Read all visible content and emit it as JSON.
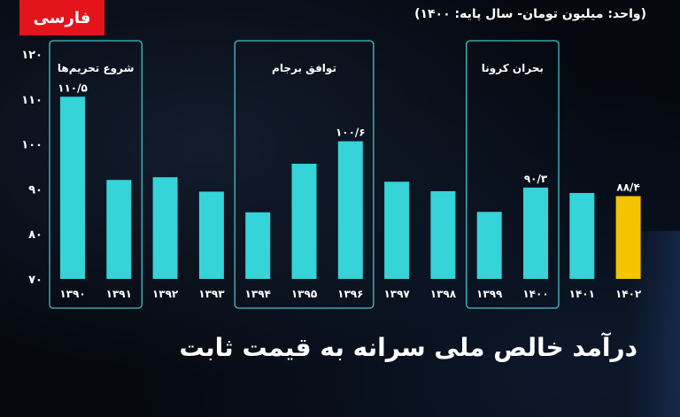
{
  "logo": {
    "text": "فارسی"
  },
  "unit_note": "(واحد: میلیون تومان- سال پایه: ۱۴۰۰)",
  "headline": "درآمد خالص ملی سرانه به قیمت ثابت",
  "colors": {
    "background": "#05080f",
    "bar": "#34d4d9",
    "bar_highlight": "#f5c400",
    "box_stroke": "#3fc2c9",
    "text": "#ffffff",
    "logo_bg": "#e3141b"
  },
  "chart_data": {
    "type": "bar",
    "title": "درآمد خالص ملی سرانه به قیمت ثابت",
    "categories": [
      "۱۳۹۰",
      "۱۳۹۱",
      "۱۳۹۲",
      "۱۳۹۳",
      "۱۳۹۴",
      "۱۳۹۵",
      "۱۳۹۶",
      "۱۳۹۷",
      "۱۳۹۸",
      "۱۳۹۹",
      "۱۴۰۰",
      "۱۴۰۱",
      "۱۴۰۲"
    ],
    "values": [
      110.5,
      92.0,
      92.6,
      89.4,
      84.8,
      95.6,
      100.6,
      91.6,
      89.5,
      84.9,
      90.3,
      89.1,
      88.4
    ],
    "highlight_index": 12,
    "ylim": [
      70,
      120
    ],
    "yticks": [
      "۷۰",
      "۸۰",
      "۹۰",
      "۱۰۰",
      "۱۱۰",
      "۱۲۰"
    ],
    "ytick_values": [
      70,
      80,
      90,
      100,
      110,
      120
    ],
    "data_labels": [
      {
        "index": 0,
        "text": "۱۱۰/۵"
      },
      {
        "index": 6,
        "text": "۱۰۰/۶"
      },
      {
        "index": 10,
        "text": "۹۰/۳"
      },
      {
        "index": 12,
        "text": "۸۸/۴"
      }
    ],
    "annotations": [
      {
        "label": "شروع تحریم‌ها",
        "from": 0,
        "to": 1
      },
      {
        "label": "توافق برجام",
        "from": 4,
        "to": 6
      },
      {
        "label": "بحران کرونا",
        "from": 9,
        "to": 10
      }
    ],
    "xlabel": "",
    "ylabel": "",
    "grid": false,
    "legend": "none"
  }
}
